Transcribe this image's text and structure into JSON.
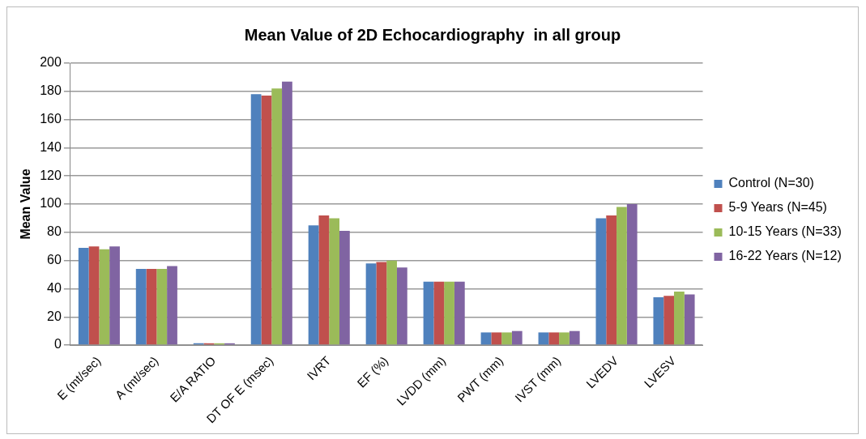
{
  "chart_data": {
    "type": "bar",
    "title": "Mean Value of 2D Echocardiography  in all group",
    "ylabel": "Mean Value",
    "categories": [
      "E (mt/sec)",
      "A (mt/sec)",
      "E/A RATIO",
      "DT OF E (msec)",
      "IVRT",
      "EF (%)",
      "LVDD (mm)",
      "PWT (mm)",
      "IVST (mm)",
      "LVEDV",
      "LVESV"
    ],
    "series": [
      {
        "name": "Control (N=30)",
        "color": "#4f81bd",
        "values": [
          69,
          54,
          1.3,
          178,
          85,
          58,
          45,
          9,
          9,
          90,
          34
        ]
      },
      {
        "name": "5-9 Years (N=45)",
        "color": "#c0504d",
        "values": [
          70,
          54,
          1.3,
          177,
          92,
          59,
          45,
          9,
          9,
          92,
          35
        ]
      },
      {
        "name": "10-15 Years (N=33)",
        "color": "#9bbb59",
        "values": [
          68,
          54,
          1.3,
          182,
          90,
          60,
          45,
          9,
          9,
          98,
          38
        ]
      },
      {
        "name": "16-22 Years (N=12)",
        "color": "#8064a2",
        "values": [
          70,
          56,
          1.3,
          187,
          81,
          55,
          45,
          10,
          10,
          100,
          36
        ]
      }
    ],
    "ylim": [
      0,
      200
    ],
    "yticks": [
      0,
      20,
      40,
      60,
      80,
      100,
      120,
      140,
      160,
      180,
      200
    ],
    "grid": "y",
    "legend": "right"
  }
}
